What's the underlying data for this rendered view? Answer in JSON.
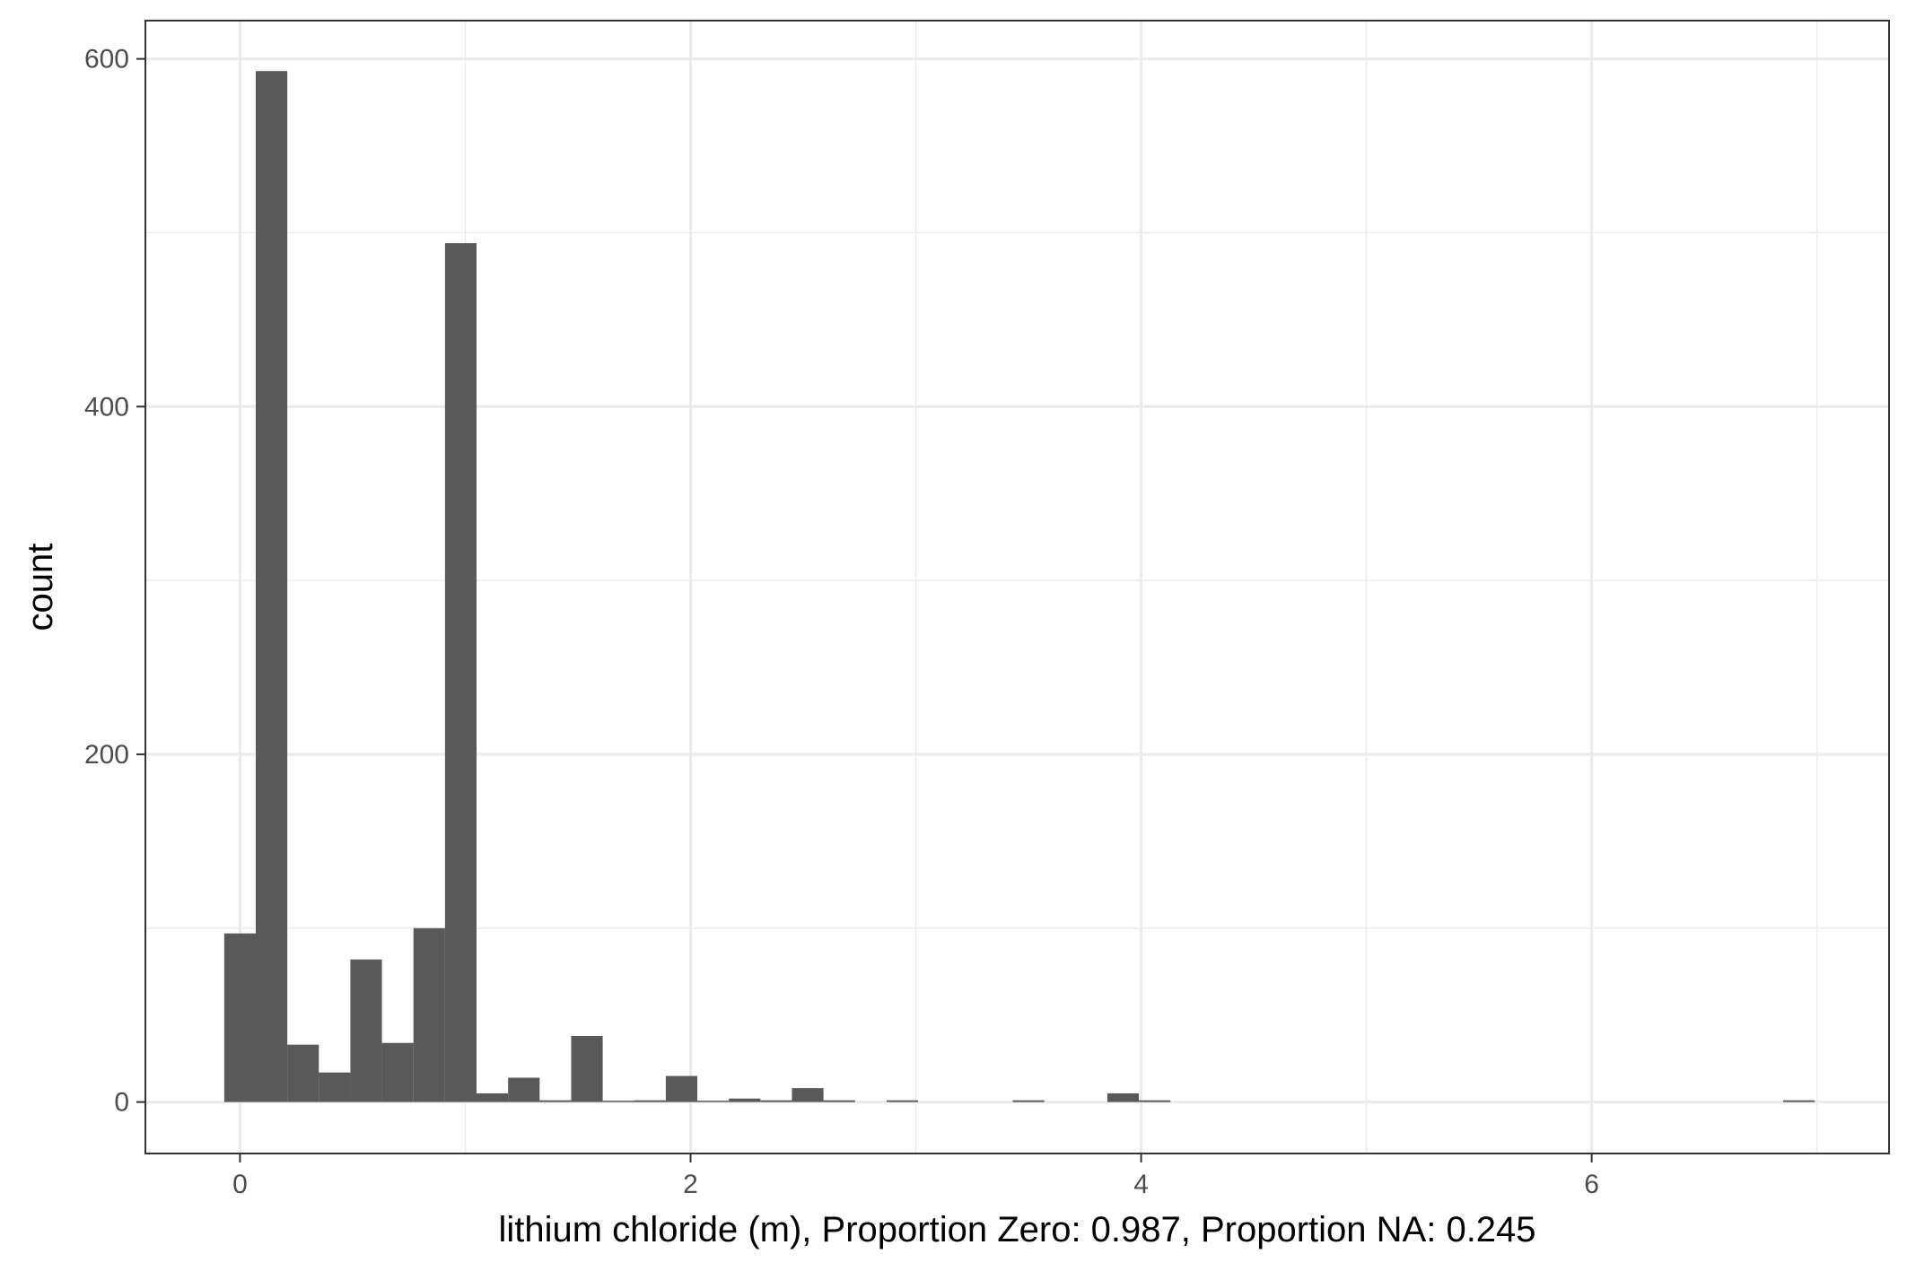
{
  "chart_data": {
    "type": "bar",
    "subtype": "histogram",
    "title": "",
    "xlabel": "lithium chloride (m), Proportion Zero: 0.987, Proportion NA: 0.245",
    "ylabel": "count",
    "xlim": [
      -0.42,
      7.32
    ],
    "ylim": [
      -29.6,
      622
    ],
    "x_ticks": [
      0,
      2,
      4,
      6
    ],
    "y_ticks": [
      0,
      200,
      400,
      600
    ],
    "x_minor_grid": [
      1,
      3,
      5,
      7
    ],
    "y_minor_grid": [
      100,
      300,
      500
    ],
    "grid": true,
    "legend": "none",
    "bar_fill": "#595959",
    "grid_color": "#ebebeb",
    "bin_width": 0.14,
    "bins": [
      {
        "x_start": -0.07,
        "x_end": 0.07,
        "count": 97
      },
      {
        "x_start": 0.07,
        "x_end": 0.21,
        "count": 593
      },
      {
        "x_start": 0.21,
        "x_end": 0.35,
        "count": 33
      },
      {
        "x_start": 0.35,
        "x_end": 0.49,
        "count": 17
      },
      {
        "x_start": 0.49,
        "x_end": 0.63,
        "count": 82
      },
      {
        "x_start": 0.63,
        "x_end": 0.77,
        "count": 34
      },
      {
        "x_start": 0.77,
        "x_end": 0.91,
        "count": 100
      },
      {
        "x_start": 0.91,
        "x_end": 1.05,
        "count": 494
      },
      {
        "x_start": 1.05,
        "x_end": 1.19,
        "count": 5
      },
      {
        "x_start": 1.19,
        "x_end": 1.33,
        "count": 14
      },
      {
        "x_start": 1.33,
        "x_end": 1.47,
        "count": 1
      },
      {
        "x_start": 1.47,
        "x_end": 1.61,
        "count": 38
      },
      {
        "x_start": 1.61,
        "x_end": 1.75,
        "count": 0
      },
      {
        "x_start": 1.75,
        "x_end": 1.89,
        "count": 1
      },
      {
        "x_start": 1.89,
        "x_end": 2.03,
        "count": 15
      },
      {
        "x_start": 2.03,
        "x_end": 2.17,
        "count": 0
      },
      {
        "x_start": 2.17,
        "x_end": 2.31,
        "count": 2
      },
      {
        "x_start": 2.31,
        "x_end": 2.45,
        "count": 1
      },
      {
        "x_start": 2.45,
        "x_end": 2.59,
        "count": 8
      },
      {
        "x_start": 2.59,
        "x_end": 2.73,
        "count": 1
      },
      {
        "x_start": 2.87,
        "x_end": 3.01,
        "count": 1
      },
      {
        "x_start": 3.43,
        "x_end": 3.57,
        "count": 1
      },
      {
        "x_start": 3.85,
        "x_end": 3.99,
        "count": 5
      },
      {
        "x_start": 3.99,
        "x_end": 4.13,
        "count": 1
      },
      {
        "x_start": 6.85,
        "x_end": 6.99,
        "count": 1
      }
    ]
  }
}
